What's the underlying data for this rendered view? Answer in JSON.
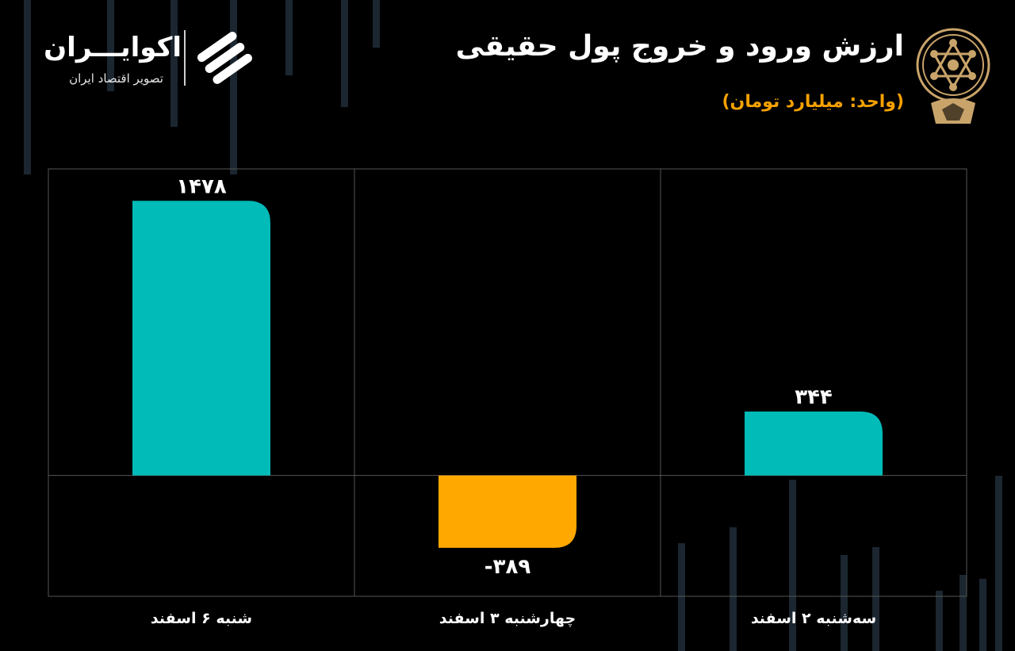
{
  "header": {
    "title": "ارزش ورود و خروج پول حقیقی",
    "subtitle": "(واحد: میلیارد تومان)"
  },
  "brand": {
    "name": "اکوایـــران",
    "tagline": "تصویر اقتصاد ایران"
  },
  "colors": {
    "positive": "#00bbb8",
    "negative": "#ffa800",
    "accent": "#f5a100",
    "background": "#000000",
    "grid": "#555555"
  },
  "chart_data": {
    "type": "bar",
    "categories": [
      "سه‌شنبه ۲ اسفند",
      "چهارشنبه ۳ اسفند",
      "شنبه ۶ اسفند"
    ],
    "values": [
      344,
      -389,
      1478
    ],
    "data_labels": [
      "۳۴۴",
      "-۳۸۹",
      "۱۴۷۸"
    ],
    "title": "ارزش ورود و خروج پول حقیقی",
    "ylabel": "(واحد: میلیارد تومان)",
    "ylim": [
      -650,
      1650
    ],
    "grid": true,
    "legend": "none"
  }
}
